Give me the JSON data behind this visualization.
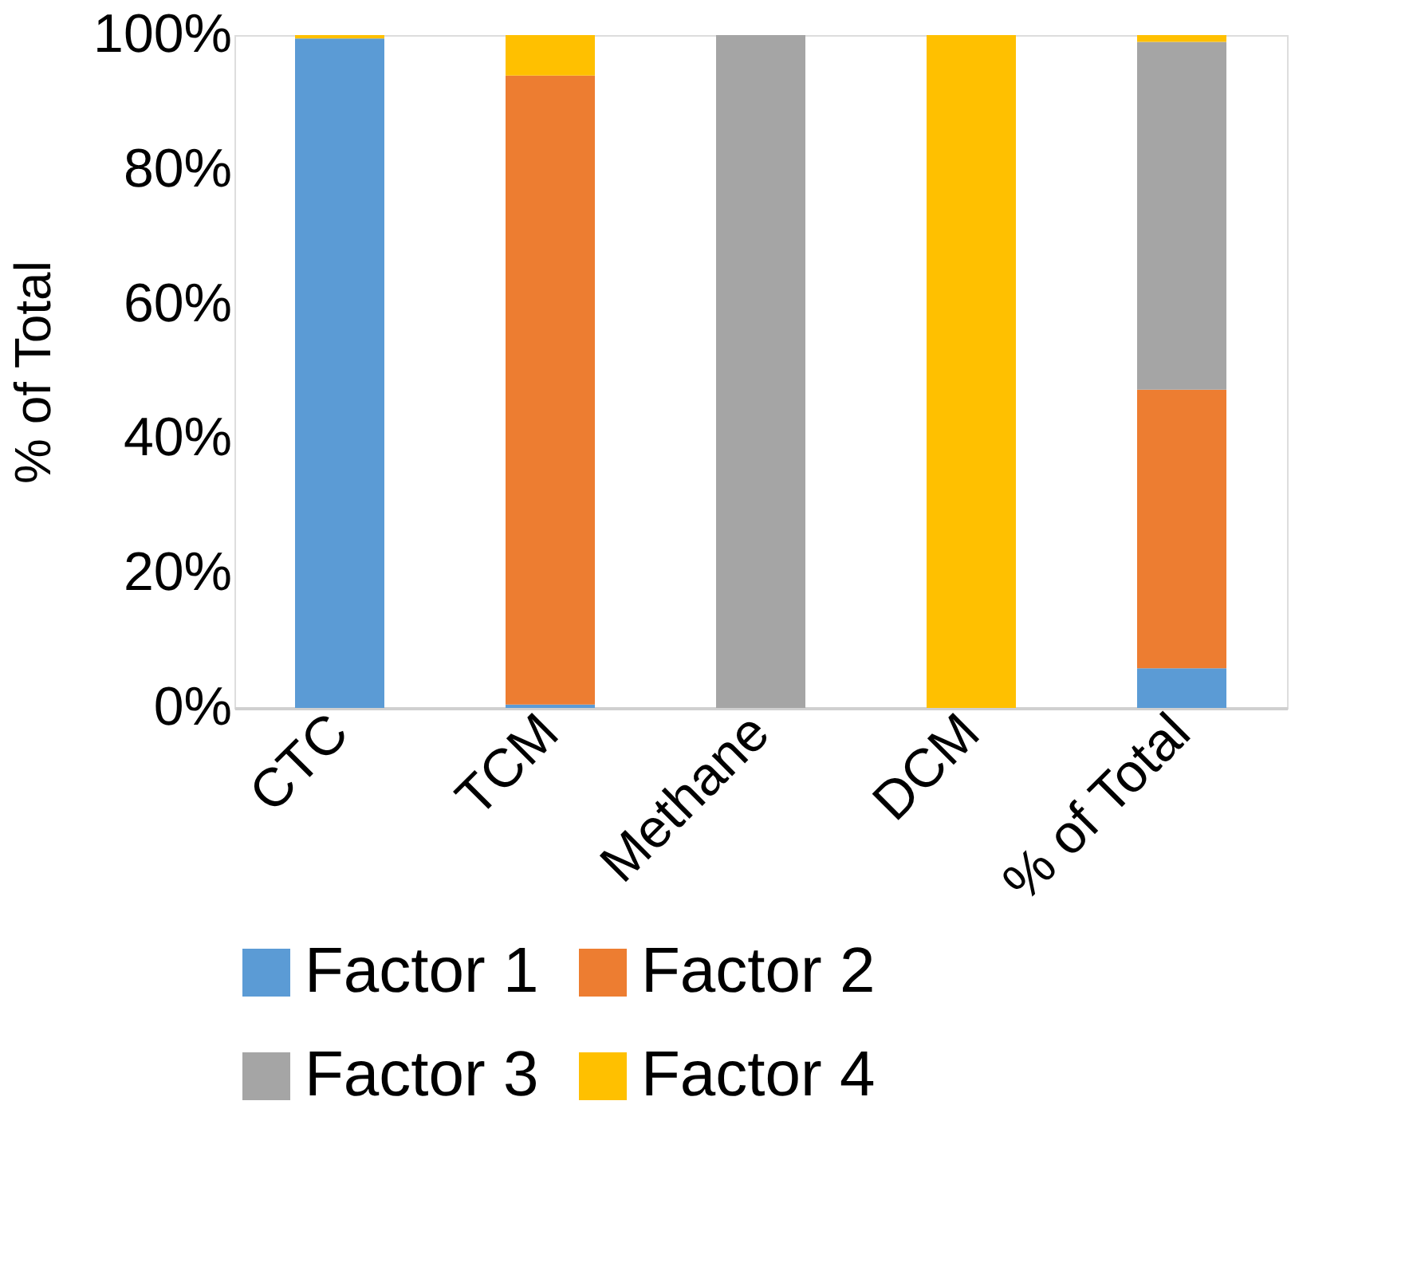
{
  "chart_data": {
    "type": "bar",
    "stacked": true,
    "ylabel": "% of Total",
    "categories": [
      "CTC",
      "TCM",
      "Methane",
      "DCM",
      "% of Total"
    ],
    "series": [
      {
        "name": "Factor 1",
        "color": "#5b9bd5",
        "values": [
          99.5,
          0.5,
          0,
          0,
          5.9
        ]
      },
      {
        "name": "Factor 2",
        "color": "#ed7d31",
        "values": [
          0,
          93.5,
          0,
          0,
          41.4
        ]
      },
      {
        "name": "Factor 3",
        "color": "#a5a5a5",
        "values": [
          0,
          0,
          100,
          0,
          51.7
        ]
      },
      {
        "name": "Factor 4",
        "color": "#ffc000",
        "values": [
          0.5,
          6,
          0,
          100,
          1
        ]
      }
    ],
    "ylim": [
      0,
      100
    ],
    "yticks": [
      {
        "value": 0,
        "label": "0%"
      },
      {
        "value": 20,
        "label": "20%"
      },
      {
        "value": 40,
        "label": "40%"
      },
      {
        "value": 60,
        "label": "60%"
      },
      {
        "value": 80,
        "label": "80%"
      },
      {
        "value": 100,
        "label": "100%"
      }
    ],
    "grid": false,
    "legend": "bottom"
  }
}
